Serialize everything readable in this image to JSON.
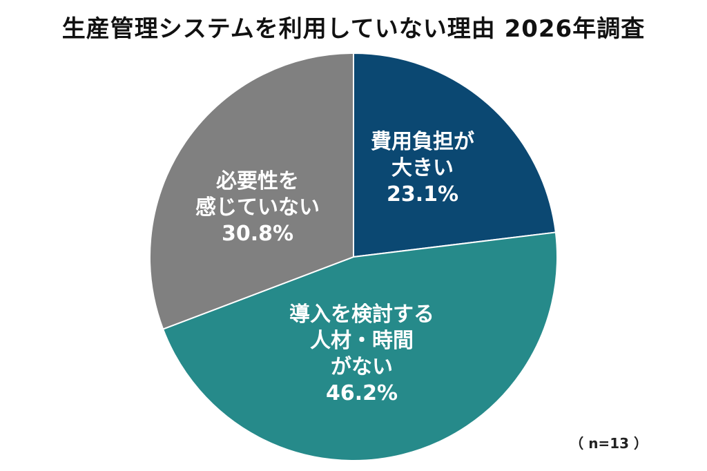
{
  "chart_data": {
    "type": "pie",
    "title": "生産管理システムを利用していない理由 2026年調査",
    "sample_note": "（ n=13 ）",
    "slices": [
      {
        "label_lines": [
          "費用負担が",
          "大きい"
        ],
        "percent_label": "23.1%",
        "value": 23.1,
        "color": "#0b4872"
      },
      {
        "label_lines": [
          "導入を検討する",
          "人材・時間",
          "がない"
        ],
        "percent_label": "46.2%",
        "value": 46.2,
        "color": "#268a8a"
      },
      {
        "label_lines": [
          "必要性を",
          "感じていない"
        ],
        "percent_label": "30.8%",
        "value": 30.8,
        "color": "#808080"
      }
    ]
  }
}
